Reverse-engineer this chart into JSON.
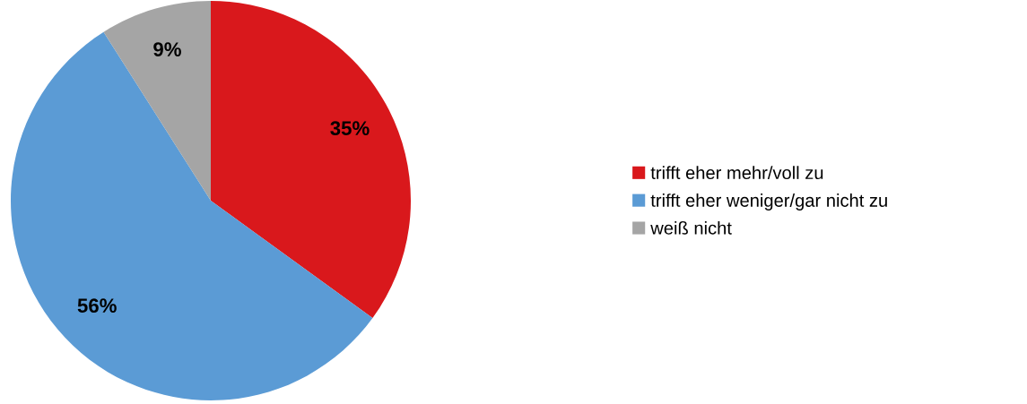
{
  "chart_data": {
    "type": "pie",
    "categories": [
      "trifft eher mehr/voll zu",
      "trifft eher weniger/gar nicht zu",
      "weiß nicht"
    ],
    "values": [
      35,
      56,
      9
    ],
    "colors": [
      "#d9181c",
      "#5b9bd5",
      "#a5a5a5"
    ],
    "value_labels": [
      "35%",
      "56%",
      "9%"
    ],
    "legend": "right"
  }
}
